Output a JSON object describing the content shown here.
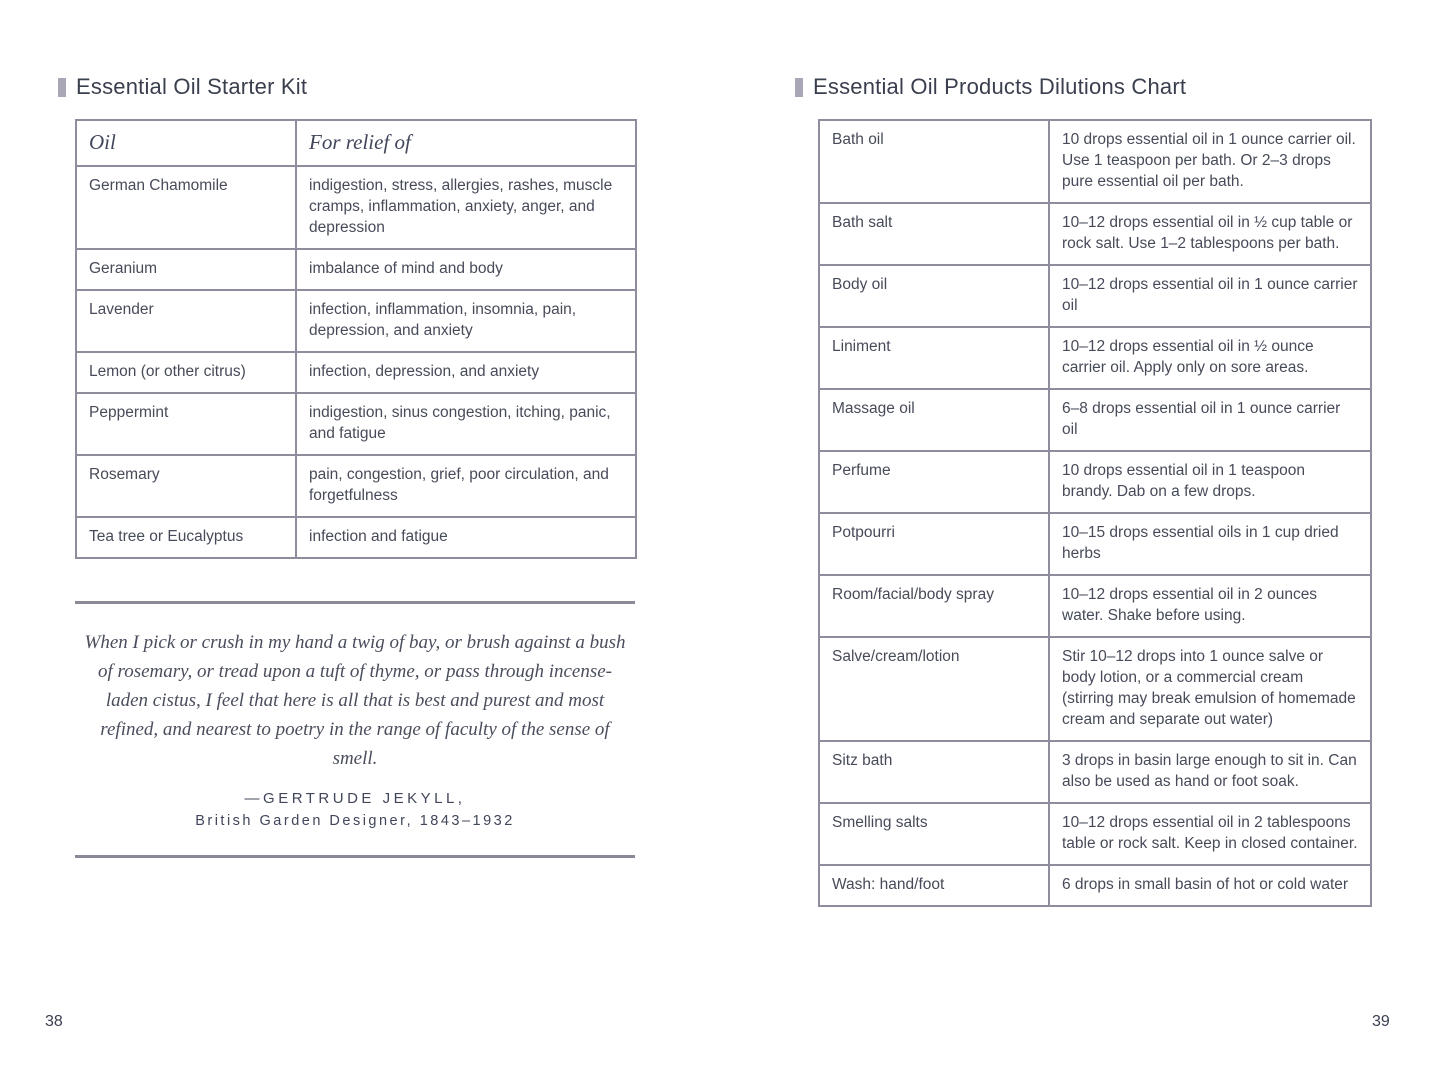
{
  "colors": {
    "text": "#474b59",
    "title": "#3a3f4e",
    "border": "#8e8d9d",
    "marker": "#a9a6b8",
    "rule": "#8a8a96"
  },
  "left_page": {
    "page_number": "38",
    "title": "Essential Oil Starter Kit",
    "table": {
      "headers": [
        "Oil",
        "For relief of"
      ],
      "rows": [
        [
          "German Chamomile",
          "indigestion, stress, allergies, rashes, muscle cramps, inflammation, anxiety, anger, and depression"
        ],
        [
          "Geranium",
          "imbalance of mind and body"
        ],
        [
          "Lavender",
          "infection, inflammation, insomnia, pain, depression, and anxiety"
        ],
        [
          "Lemon (or other citrus)",
          "infection, depression, and anxiety"
        ],
        [
          "Peppermint",
          "indigestion, sinus congestion, itching, panic, and fatigue"
        ],
        [
          "Rosemary",
          "pain, congestion, grief, poor circulation, and forgetfulness"
        ],
        [
          "Tea tree or Eucalyptus",
          "infection and fatigue"
        ]
      ]
    },
    "quote": {
      "text": "When I pick or crush in my hand a twig of bay, or brush against a bush of rosemary, or tread upon a tuft of thyme, or pass through incense-laden cistus, I feel that here is all that is best and purest and most refined, and nearest to poetry in the range of faculty of the sense of smell.",
      "attribution": "—GERTRUDE JEKYLL,",
      "attribution_detail": "British Garden Designer, 1843–1932"
    }
  },
  "right_page": {
    "page_number": "39",
    "title": "Essential Oil Products Dilutions Chart",
    "table": {
      "rows": [
        [
          "Bath oil",
          "10 drops essential oil in 1 ounce carrier oil. Use 1 teaspoon per bath. Or 2–3 drops pure essential oil per bath."
        ],
        [
          "Bath salt",
          "10–12 drops essential oil in ½ cup table or rock salt. Use 1–2 tablespoons per bath."
        ],
        [
          "Body oil",
          "10–12 drops essential oil in 1 ounce carrier oil"
        ],
        [
          "Liniment",
          "10–12 drops essential oil in ½ ounce carrier oil. Apply only on sore areas."
        ],
        [
          "Massage oil",
          "6–8 drops essential oil in 1 ounce carrier oil"
        ],
        [
          "Perfume",
          "10 drops essential oil in 1 teaspoon brandy. Dab on a few drops."
        ],
        [
          "Potpourri",
          "10–15 drops essential oils in 1 cup dried herbs"
        ],
        [
          "Room/facial/body spray",
          "10–12 drops essential oil in 2 ounces water. Shake before using."
        ],
        [
          "Salve/cream/lotion",
          "Stir 10–12 drops into 1 ounce salve or body lotion, or a commercial cream (stirring may break emulsion of homemade cream and separate out water)"
        ],
        [
          "Sitz bath",
          "3 drops in basin large enough to sit in. Can also be used as hand or foot soak."
        ],
        [
          "Smelling salts",
          "10–12 drops essential oil in 2 tablespoons table or rock salt. Keep in closed container."
        ],
        [
          "Wash: hand/foot",
          "6 drops in small basin of hot or cold water"
        ]
      ]
    }
  }
}
